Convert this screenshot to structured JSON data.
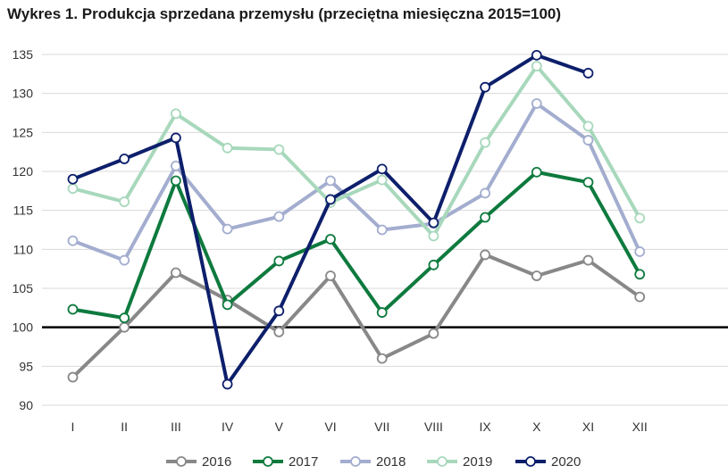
{
  "chart_data": {
    "type": "line",
    "title": "Wykres 1. Produkcja sprzedana przemysłu (przeciętna miesięczna 2015=100)",
    "xlabel": "",
    "ylabel": "",
    "categories": [
      "I",
      "II",
      "III",
      "IV",
      "V",
      "VI",
      "VII",
      "VIII",
      "IX",
      "X",
      "XI",
      "XII"
    ],
    "ylim": [
      90,
      135
    ],
    "yticks": [
      90,
      95,
      100,
      105,
      110,
      115,
      120,
      125,
      130,
      135
    ],
    "reference_line": 100,
    "grid": "horizontal",
    "legend": "bottom",
    "series": [
      {
        "name": "2016",
        "color": "#888888",
        "values": [
          93.6,
          100.0,
          107.0,
          103.5,
          99.4,
          106.6,
          96.0,
          99.2,
          109.3,
          106.6,
          108.6,
          103.9
        ]
      },
      {
        "name": "2017",
        "color": "#0e7a3e",
        "values": [
          102.3,
          101.2,
          118.8,
          102.9,
          108.5,
          111.3,
          101.9,
          108.0,
          114.1,
          119.9,
          118.6,
          106.8
        ]
      },
      {
        "name": "2018",
        "color": "#a3adcf",
        "values": [
          111.1,
          108.6,
          120.7,
          112.6,
          114.2,
          118.8,
          112.5,
          113.3,
          117.2,
          128.7,
          124.0,
          109.7
        ]
      },
      {
        "name": "2019",
        "color": "#a8d8bc",
        "values": [
          117.8,
          116.1,
          127.4,
          123.0,
          122.8,
          116.0,
          118.9,
          111.7,
          123.7,
          133.5,
          125.8,
          114.0
        ]
      },
      {
        "name": "2020",
        "color": "#0d1f6b",
        "values": [
          119.0,
          121.6,
          124.3,
          92.7,
          102.1,
          116.4,
          120.3,
          113.4,
          130.8,
          134.9,
          132.6,
          null
        ]
      }
    ]
  }
}
